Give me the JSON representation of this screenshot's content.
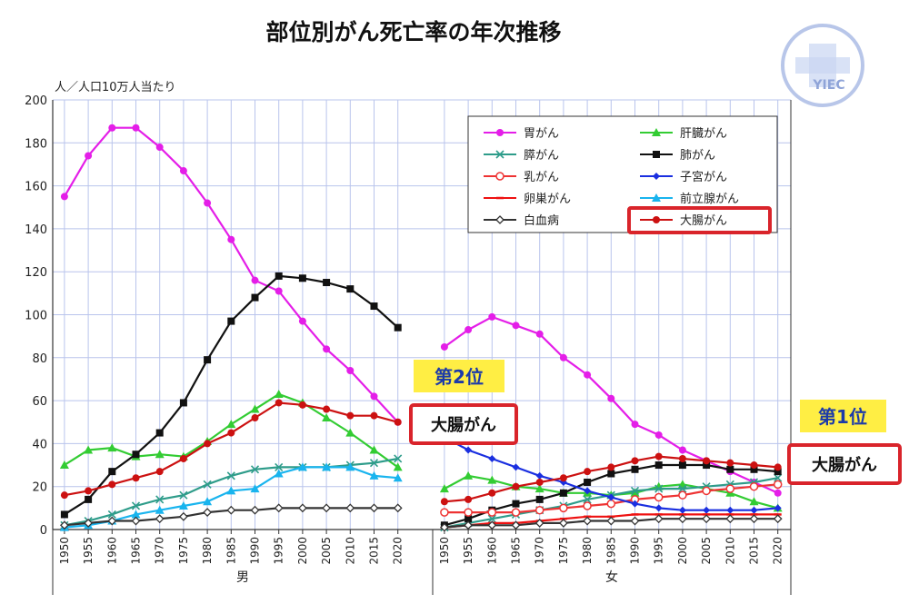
{
  "chart_data": {
    "type": "line",
    "title": "部位別がん死亡率の年次推移",
    "ylabel": "人／人口10万人当たり",
    "ylim": [
      0,
      200
    ],
    "yticks": [
      0,
      20,
      40,
      60,
      80,
      100,
      120,
      140,
      160,
      180,
      200
    ],
    "x": [
      1950,
      1955,
      1960,
      1965,
      1970,
      1975,
      1980,
      1985,
      1990,
      1995,
      2000,
      2005,
      2010,
      2015,
      2020
    ],
    "grid": true,
    "legend_position": "top-right",
    "groups": [
      {
        "label": "男",
        "series": [
          {
            "name": "胃がん",
            "color": "#e41ee8",
            "marker": "circle",
            "values": [
              155,
              174,
              187,
              187,
              178,
              167,
              152,
              135,
              116,
              111,
              97,
              84,
              74,
              62,
              50
            ]
          },
          {
            "name": "肝臓がん",
            "color": "#33cc33",
            "marker": "triangle",
            "values": [
              30,
              37,
              38,
              34,
              35,
              34,
              41,
              49,
              56,
              63,
              59,
              52,
              45,
              37,
              29
            ]
          },
          {
            "name": "膵がん",
            "color": "#2e9c8a",
            "marker": "x",
            "values": [
              2,
              4,
              7,
              11,
              14,
              16,
              21,
              25,
              28,
              29,
              29,
              29,
              30,
              31,
              33
            ]
          },
          {
            "name": "肺がん",
            "color": "#111111",
            "marker": "square",
            "values": [
              7,
              14,
              27,
              35,
              45,
              59,
              79,
              97,
              108,
              118,
              117,
              115,
              112,
              104,
              94
            ]
          },
          {
            "name": "乳がん",
            "color": "#ee3333",
            "marker": "open-circle",
            "values": [
              null,
              null,
              null,
              null,
              null,
              null,
              null,
              null,
              null,
              null,
              null,
              null,
              null,
              null,
              null
            ]
          },
          {
            "name": "子宮がん",
            "color": "#1a2fe0",
            "marker": "diamond",
            "values": [
              null,
              null,
              null,
              null,
              null,
              null,
              null,
              null,
              null,
              null,
              null,
              null,
              null,
              null,
              null
            ]
          },
          {
            "name": "卵巣がん",
            "color": "#ee1111",
            "marker": "dash",
            "values": [
              null,
              null,
              null,
              null,
              null,
              null,
              null,
              null,
              null,
              null,
              null,
              null,
              null,
              null,
              null
            ]
          },
          {
            "name": "前立腺がん",
            "color": "#19b4ee",
            "marker": "triangle",
            "values": [
              1,
              2,
              4,
              7,
              9,
              11,
              13,
              18,
              19,
              26,
              29,
              29,
              29,
              25,
              24
            ]
          },
          {
            "name": "白血病",
            "color": "#333333",
            "marker": "open-diamond",
            "values": [
              2,
              3,
              4,
              4,
              5,
              6,
              8,
              9,
              9,
              10,
              10,
              10,
              10,
              10,
              10
            ]
          },
          {
            "name": "大腸がん",
            "color": "#cc1111",
            "marker": "circle",
            "values": [
              16,
              18,
              21,
              24,
              27,
              33,
              40,
              45,
              52,
              59,
              58,
              56,
              53,
              53,
              50
            ]
          }
        ]
      },
      {
        "label": "女",
        "series": [
          {
            "name": "胃がん",
            "color": "#e41ee8",
            "marker": "circle",
            "values": [
              85,
              93,
              99,
              95,
              91,
              80,
              72,
              61,
              49,
              44,
              37,
              32,
              27,
              22,
              17
            ]
          },
          {
            "name": "肝臓がん",
            "color": "#33cc33",
            "marker": "triangle",
            "values": [
              19,
              25,
              23,
              20,
              19,
              17,
              17,
              16,
              17,
              20,
              21,
              19,
              17,
              13,
              10
            ]
          },
          {
            "name": "膵がん",
            "color": "#2e9c8a",
            "marker": "x",
            "values": [
              1,
              3,
              5,
              7,
              9,
              11,
              14,
              16,
              18,
              19,
              19,
              20,
              21,
              22,
              24
            ]
          },
          {
            "name": "肺がん",
            "color": "#111111",
            "marker": "square",
            "values": [
              2,
              5,
              9,
              12,
              14,
              17,
              22,
              26,
              28,
              30,
              30,
              30,
              28,
              28,
              27
            ]
          },
          {
            "name": "乳がん",
            "color": "#ee3333",
            "marker": "open-circle",
            "values": [
              8,
              8,
              8,
              8,
              9,
              10,
              11,
              12,
              14,
              15,
              16,
              18,
              19,
              20,
              21
            ]
          },
          {
            "name": "子宮がん",
            "color": "#1a2fe0",
            "marker": "diamond",
            "values": [
              43,
              37,
              33,
              29,
              25,
              22,
              18,
              15,
              12,
              10,
              9,
              9,
              9,
              9,
              10
            ]
          },
          {
            "name": "卵巣がん",
            "color": "#ee1111",
            "marker": "dash",
            "values": [
              1,
              2,
              3,
              3,
              4,
              5,
              6,
              6,
              7,
              7,
              7,
              7,
              7,
              7,
              7
            ]
          },
          {
            "name": "前立腺がん",
            "color": "#19b4ee",
            "marker": "triangle",
            "values": [
              null,
              null,
              null,
              null,
              null,
              null,
              null,
              null,
              null,
              null,
              null,
              null,
              null,
              null,
              null
            ]
          },
          {
            "name": "白血病",
            "color": "#333333",
            "marker": "open-diamond",
            "values": [
              1,
              2,
              2,
              2,
              3,
              3,
              4,
              4,
              4,
              5,
              5,
              5,
              5,
              5,
              5
            ]
          },
          {
            "name": "大腸がん",
            "color": "#cc1111",
            "marker": "circle",
            "values": [
              13,
              14,
              17,
              20,
              22,
              24,
              27,
              29,
              32,
              34,
              33,
              32,
              31,
              30,
              29
            ]
          }
        ]
      }
    ],
    "legend": [
      "胃がん",
      "肝臓がん",
      "膵がん",
      "肺がん",
      "乳がん",
      "子宮がん",
      "卵巣がん",
      "前立腺がん",
      "白血病",
      "大腸がん"
    ],
    "legend_highlight": "大腸がん",
    "annotations": [
      {
        "group": "男",
        "rank": "第2位",
        "label": "大腸がん"
      },
      {
        "group": "女",
        "rank": "第1位",
        "label": "大腸がん"
      }
    ]
  },
  "logo": {
    "text": "YIEC"
  },
  "colors": {
    "grid": "#b9c4ec",
    "highlight_box": "#d9242b",
    "rank_bg": "#ffee44"
  }
}
